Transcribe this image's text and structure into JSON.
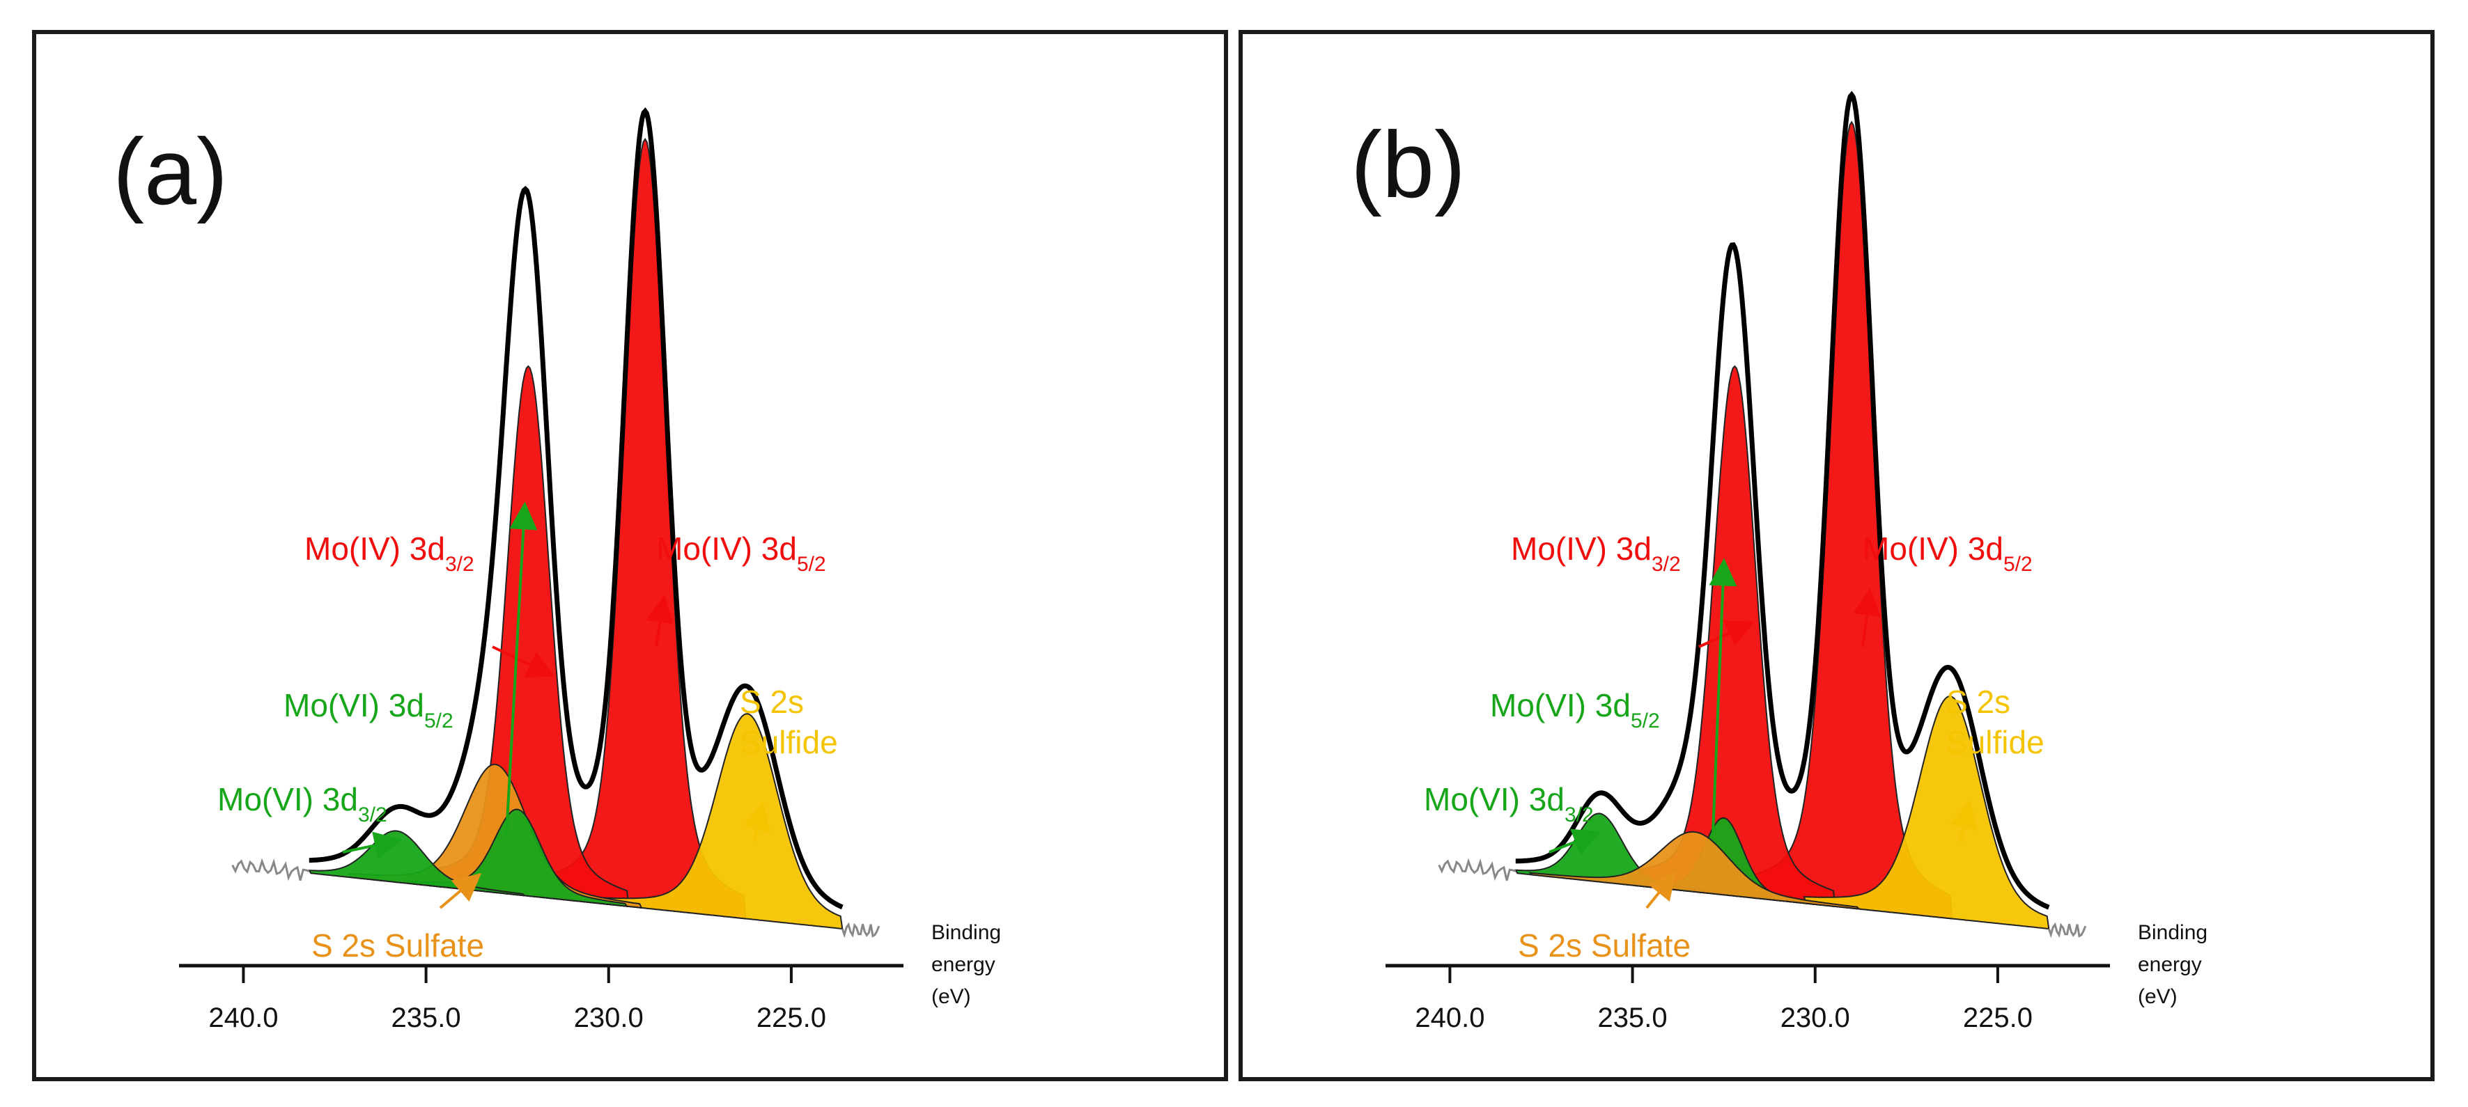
{
  "chart_data": [
    {
      "type": "area",
      "panel_label": "(a)",
      "xlabel": [
        "Binding",
        "energy",
        "(eV)"
      ],
      "ylabel": "",
      "xlim": [
        241,
        222.5
      ],
      "x_ticks": [
        "240.0",
        "235.0",
        "230.0",
        "225.0"
      ],
      "x_tick_values": [
        240,
        235,
        230,
        225
      ],
      "colors": {
        "mo_iv": "#f20d0d",
        "mo_vi": "#17a61a",
        "s_sulfate": "#e8921a",
        "s_sulfide": "#f5c400",
        "envelope": "#000000",
        "raw": "#888888"
      },
      "peaks": [
        {
          "name": "Mo(IV) 3d5/2",
          "center": 229.0,
          "height": 0.9,
          "width": 0.55,
          "color": "mo_iv"
        },
        {
          "name": "Mo(IV) 3d3/2",
          "center": 232.2,
          "height": 0.62,
          "width": 0.55,
          "color": "mo_iv"
        },
        {
          "name": "Mo(VI) 3d5/2",
          "center": 232.5,
          "height": 0.1,
          "width": 0.6,
          "color": "mo_vi"
        },
        {
          "name": "Mo(VI) 3d3/2",
          "center": 235.8,
          "height": 0.06,
          "width": 0.7,
          "color": "mo_vi"
        },
        {
          "name": "S 2s Sulfate",
          "center": 233.1,
          "height": 0.15,
          "width": 0.8,
          "color": "s_sulfate"
        },
        {
          "name": "S 2s Sulfide",
          "center": 226.2,
          "height": 0.24,
          "width": 0.8,
          "color": "s_sulfide"
        }
      ],
      "annotations": [
        {
          "base": "Mo(IV) 3d",
          "sub": "3/2",
          "color": "mo_iv",
          "target_x": 231.6
        },
        {
          "base": "Mo(IV) 3d",
          "sub": "5/2",
          "color": "mo_iv",
          "target_x": 228.5
        },
        {
          "base": "Mo(VI) 3d",
          "sub": "5/2",
          "color": "mo_vi",
          "target_x": 232.3
        },
        {
          "base": "Mo(VI) 3d",
          "sub": "3/2",
          "color": "mo_vi",
          "target_x": 235.8
        },
        {
          "lines": [
            "S 2s",
            "Sulfide"
          ],
          "color": "s_sulfide",
          "target_x": 225.8
        },
        {
          "lines": [
            "S 2s Sulfate"
          ],
          "color": "s_sulfate",
          "target_x": 233.6
        }
      ]
    },
    {
      "type": "area",
      "panel_label": "(b)",
      "xlabel": [
        "Binding",
        "energy",
        "(eV)"
      ],
      "ylabel": "",
      "xlim": [
        241,
        222.5
      ],
      "x_ticks": [
        "240.0",
        "235.0",
        "230.0",
        "225.0"
      ],
      "x_tick_values": [
        240,
        235,
        230,
        225
      ],
      "colors": {
        "mo_iv": "#f20d0d",
        "mo_vi": "#17a61a",
        "s_sulfate": "#e8921a",
        "s_sulfide": "#f5c400",
        "envelope": "#000000",
        "raw": "#888888"
      },
      "peaks": [
        {
          "name": "Mo(IV) 3d5/2",
          "center": 229.0,
          "height": 0.92,
          "width": 0.55,
          "color": "mo_iv"
        },
        {
          "name": "Mo(IV) 3d3/2",
          "center": 232.2,
          "height": 0.62,
          "width": 0.55,
          "color": "mo_iv"
        },
        {
          "name": "Mo(VI) 3d5/2",
          "center": 232.5,
          "height": 0.09,
          "width": 0.5,
          "color": "mo_vi"
        },
        {
          "name": "Mo(VI) 3d3/2",
          "center": 235.9,
          "height": 0.08,
          "width": 0.6,
          "color": "mo_vi"
        },
        {
          "name": "S 2s Sulfate",
          "center": 233.3,
          "height": 0.07,
          "width": 0.9,
          "color": "s_sulfate"
        },
        {
          "name": "S 2s Sulfide",
          "center": 226.3,
          "height": 0.26,
          "width": 0.8,
          "color": "s_sulfide"
        }
      ],
      "annotations": [
        {
          "base": "Mo(IV) 3d",
          "sub": "3/2",
          "color": "mo_iv",
          "target_x": 231.8
        },
        {
          "base": "Mo(IV) 3d",
          "sub": "5/2",
          "color": "mo_iv",
          "target_x": 228.5
        },
        {
          "base": "Mo(VI) 3d",
          "sub": "5/2",
          "color": "mo_vi",
          "target_x": 232.5
        },
        {
          "base": "Mo(VI) 3d",
          "sub": "3/2",
          "color": "mo_vi",
          "target_x": 236.0
        },
        {
          "lines": [
            "S 2s",
            "Sulfide"
          ],
          "color": "s_sulfide",
          "target_x": 225.8
        },
        {
          "lines": [
            "S 2s Sulfate"
          ],
          "color": "s_sulfate",
          "target_x": 233.9
        }
      ]
    }
  ]
}
